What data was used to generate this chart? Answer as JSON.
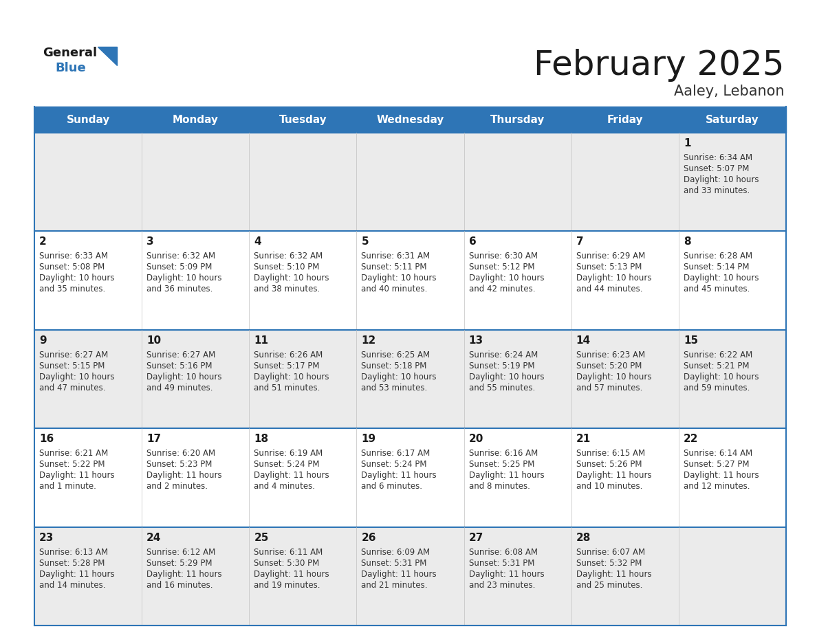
{
  "title": "February 2025",
  "subtitle": "Aaley, Lebanon",
  "header_bg": "#2E75B6",
  "header_text_color": "#FFFFFF",
  "cell_bg_row0": "#EBEBEB",
  "cell_bg_row1": "#FFFFFF",
  "separator_color": "#2E75B6",
  "days_of_week": [
    "Sunday",
    "Monday",
    "Tuesday",
    "Wednesday",
    "Thursday",
    "Friday",
    "Saturday"
  ],
  "title_color": "#1A1A1A",
  "subtitle_color": "#333333",
  "day_num_color": "#1A1A1A",
  "info_color": "#333333",
  "calendar": [
    [
      null,
      null,
      null,
      null,
      null,
      null,
      {
        "day": "1",
        "sunrise": "6:34 AM",
        "sunset": "5:07 PM",
        "daylight_line1": "Daylight: 10 hours",
        "daylight_line2": "and 33 minutes."
      }
    ],
    [
      {
        "day": "2",
        "sunrise": "6:33 AM",
        "sunset": "5:08 PM",
        "daylight_line1": "Daylight: 10 hours",
        "daylight_line2": "and 35 minutes."
      },
      {
        "day": "3",
        "sunrise": "6:32 AM",
        "sunset": "5:09 PM",
        "daylight_line1": "Daylight: 10 hours",
        "daylight_line2": "and 36 minutes."
      },
      {
        "day": "4",
        "sunrise": "6:32 AM",
        "sunset": "5:10 PM",
        "daylight_line1": "Daylight: 10 hours",
        "daylight_line2": "and 38 minutes."
      },
      {
        "day": "5",
        "sunrise": "6:31 AM",
        "sunset": "5:11 PM",
        "daylight_line1": "Daylight: 10 hours",
        "daylight_line2": "and 40 minutes."
      },
      {
        "day": "6",
        "sunrise": "6:30 AM",
        "sunset": "5:12 PM",
        "daylight_line1": "Daylight: 10 hours",
        "daylight_line2": "and 42 minutes."
      },
      {
        "day": "7",
        "sunrise": "6:29 AM",
        "sunset": "5:13 PM",
        "daylight_line1": "Daylight: 10 hours",
        "daylight_line2": "and 44 minutes."
      },
      {
        "day": "8",
        "sunrise": "6:28 AM",
        "sunset": "5:14 PM",
        "daylight_line1": "Daylight: 10 hours",
        "daylight_line2": "and 45 minutes."
      }
    ],
    [
      {
        "day": "9",
        "sunrise": "6:27 AM",
        "sunset": "5:15 PM",
        "daylight_line1": "Daylight: 10 hours",
        "daylight_line2": "and 47 minutes."
      },
      {
        "day": "10",
        "sunrise": "6:27 AM",
        "sunset": "5:16 PM",
        "daylight_line1": "Daylight: 10 hours",
        "daylight_line2": "and 49 minutes."
      },
      {
        "day": "11",
        "sunrise": "6:26 AM",
        "sunset": "5:17 PM",
        "daylight_line1": "Daylight: 10 hours",
        "daylight_line2": "and 51 minutes."
      },
      {
        "day": "12",
        "sunrise": "6:25 AM",
        "sunset": "5:18 PM",
        "daylight_line1": "Daylight: 10 hours",
        "daylight_line2": "and 53 minutes."
      },
      {
        "day": "13",
        "sunrise": "6:24 AM",
        "sunset": "5:19 PM",
        "daylight_line1": "Daylight: 10 hours",
        "daylight_line2": "and 55 minutes."
      },
      {
        "day": "14",
        "sunrise": "6:23 AM",
        "sunset": "5:20 PM",
        "daylight_line1": "Daylight: 10 hours",
        "daylight_line2": "and 57 minutes."
      },
      {
        "day": "15",
        "sunrise": "6:22 AM",
        "sunset": "5:21 PM",
        "daylight_line1": "Daylight: 10 hours",
        "daylight_line2": "and 59 minutes."
      }
    ],
    [
      {
        "day": "16",
        "sunrise": "6:21 AM",
        "sunset": "5:22 PM",
        "daylight_line1": "Daylight: 11 hours",
        "daylight_line2": "and 1 minute."
      },
      {
        "day": "17",
        "sunrise": "6:20 AM",
        "sunset": "5:23 PM",
        "daylight_line1": "Daylight: 11 hours",
        "daylight_line2": "and 2 minutes."
      },
      {
        "day": "18",
        "sunrise": "6:19 AM",
        "sunset": "5:24 PM",
        "daylight_line1": "Daylight: 11 hours",
        "daylight_line2": "and 4 minutes."
      },
      {
        "day": "19",
        "sunrise": "6:17 AM",
        "sunset": "5:24 PM",
        "daylight_line1": "Daylight: 11 hours",
        "daylight_line2": "and 6 minutes."
      },
      {
        "day": "20",
        "sunrise": "6:16 AM",
        "sunset": "5:25 PM",
        "daylight_line1": "Daylight: 11 hours",
        "daylight_line2": "and 8 minutes."
      },
      {
        "day": "21",
        "sunrise": "6:15 AM",
        "sunset": "5:26 PM",
        "daylight_line1": "Daylight: 11 hours",
        "daylight_line2": "and 10 minutes."
      },
      {
        "day": "22",
        "sunrise": "6:14 AM",
        "sunset": "5:27 PM",
        "daylight_line1": "Daylight: 11 hours",
        "daylight_line2": "and 12 minutes."
      }
    ],
    [
      {
        "day": "23",
        "sunrise": "6:13 AM",
        "sunset": "5:28 PM",
        "daylight_line1": "Daylight: 11 hours",
        "daylight_line2": "and 14 minutes."
      },
      {
        "day": "24",
        "sunrise": "6:12 AM",
        "sunset": "5:29 PM",
        "daylight_line1": "Daylight: 11 hours",
        "daylight_line2": "and 16 minutes."
      },
      {
        "day": "25",
        "sunrise": "6:11 AM",
        "sunset": "5:30 PM",
        "daylight_line1": "Daylight: 11 hours",
        "daylight_line2": "and 19 minutes."
      },
      {
        "day": "26",
        "sunrise": "6:09 AM",
        "sunset": "5:31 PM",
        "daylight_line1": "Daylight: 11 hours",
        "daylight_line2": "and 21 minutes."
      },
      {
        "day": "27",
        "sunrise": "6:08 AM",
        "sunset": "5:31 PM",
        "daylight_line1": "Daylight: 11 hours",
        "daylight_line2": "and 23 minutes."
      },
      {
        "day": "28",
        "sunrise": "6:07 AM",
        "sunset": "5:32 PM",
        "daylight_line1": "Daylight: 11 hours",
        "daylight_line2": "and 25 minutes."
      },
      null
    ]
  ],
  "fig_width": 11.88,
  "fig_height": 9.18,
  "dpi": 100
}
